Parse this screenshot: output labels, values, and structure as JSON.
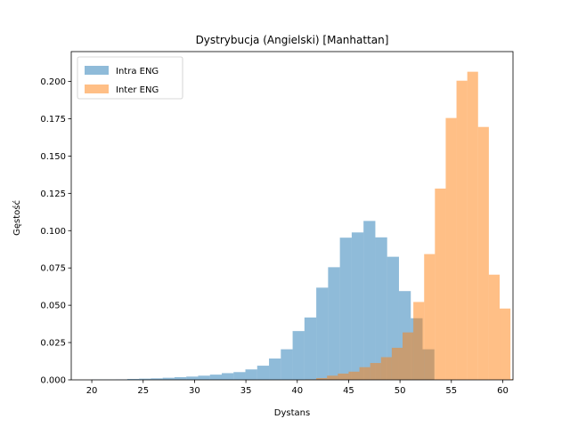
{
  "chart_data": {
    "type": "histogram",
    "title": "Dystrybucja (Angielski) [Manhattan]",
    "xlabel": "Dystans",
    "ylabel": "Gęstość",
    "xlim": [
      18,
      61
    ],
    "ylim": [
      0,
      0.22
    ],
    "x_ticks": [
      20,
      25,
      30,
      35,
      40,
      45,
      50,
      55,
      60
    ],
    "y_ticks": [
      "0.000",
      "0.025",
      "0.050",
      "0.075",
      "0.100",
      "0.125",
      "0.150",
      "0.175",
      "0.200"
    ],
    "y_tick_values": [
      0,
      0.025,
      0.05,
      0.075,
      0.1,
      0.125,
      0.15,
      0.175,
      0.2
    ],
    "grid": false,
    "legend_position": "top-left",
    "series": [
      {
        "name": "Intra ENG",
        "color": "#1f77b4",
        "opacity": 0.5,
        "bins": [
          [
            20.0,
            21.15,
            0.0002
          ],
          [
            21.15,
            22.3,
            0.0002
          ],
          [
            22.3,
            23.45,
            0.0003
          ],
          [
            23.45,
            24.6,
            0.0006
          ],
          [
            24.6,
            25.75,
            0.0008
          ],
          [
            25.75,
            26.9,
            0.001
          ],
          [
            26.9,
            28.05,
            0.0014
          ],
          [
            28.05,
            29.2,
            0.0018
          ],
          [
            29.2,
            30.35,
            0.0022
          ],
          [
            30.35,
            31.5,
            0.0028
          ],
          [
            31.5,
            32.65,
            0.0035
          ],
          [
            32.65,
            33.8,
            0.0045
          ],
          [
            33.8,
            34.95,
            0.0052
          ],
          [
            34.95,
            36.1,
            0.007
          ],
          [
            36.1,
            37.25,
            0.0095
          ],
          [
            37.25,
            38.4,
            0.0143
          ],
          [
            38.4,
            39.55,
            0.0205
          ],
          [
            39.55,
            40.7,
            0.0327
          ],
          [
            40.7,
            41.85,
            0.0418
          ],
          [
            41.85,
            43.0,
            0.0618
          ],
          [
            43.0,
            44.15,
            0.0755
          ],
          [
            44.15,
            45.3,
            0.0953
          ],
          [
            45.3,
            46.45,
            0.0988
          ],
          [
            46.45,
            47.6,
            0.1065
          ],
          [
            47.6,
            48.75,
            0.0955
          ],
          [
            48.75,
            49.9,
            0.0825
          ],
          [
            49.9,
            51.05,
            0.0595
          ],
          [
            51.05,
            52.2,
            0.0413
          ],
          [
            52.2,
            53.35,
            0.0205
          ]
        ]
      },
      {
        "name": "Inter ENG",
        "color": "#ff7f0e",
        "opacity": 0.5,
        "bins": [
          [
            40.8,
            41.85,
            0.0003
          ],
          [
            41.85,
            42.9,
            0.0012
          ],
          [
            42.9,
            43.95,
            0.0028
          ],
          [
            43.95,
            45.0,
            0.0042
          ],
          [
            45.0,
            46.05,
            0.0055
          ],
          [
            46.05,
            47.1,
            0.0085
          ],
          [
            47.1,
            48.15,
            0.0113
          ],
          [
            48.15,
            49.2,
            0.0152
          ],
          [
            49.2,
            50.25,
            0.0215
          ],
          [
            50.25,
            51.3,
            0.0318
          ],
          [
            51.3,
            52.35,
            0.0522
          ],
          [
            52.35,
            53.4,
            0.0843
          ],
          [
            53.4,
            54.45,
            0.1282
          ],
          [
            54.45,
            55.5,
            0.1755
          ],
          [
            55.5,
            56.55,
            0.2005
          ],
          [
            56.55,
            57.6,
            0.2065
          ],
          [
            57.6,
            58.65,
            0.1695
          ],
          [
            58.65,
            59.7,
            0.0705
          ],
          [
            59.7,
            60.75,
            0.0478
          ],
          [
            60.75,
            61.0,
            0.0005
          ]
        ]
      }
    ]
  }
}
